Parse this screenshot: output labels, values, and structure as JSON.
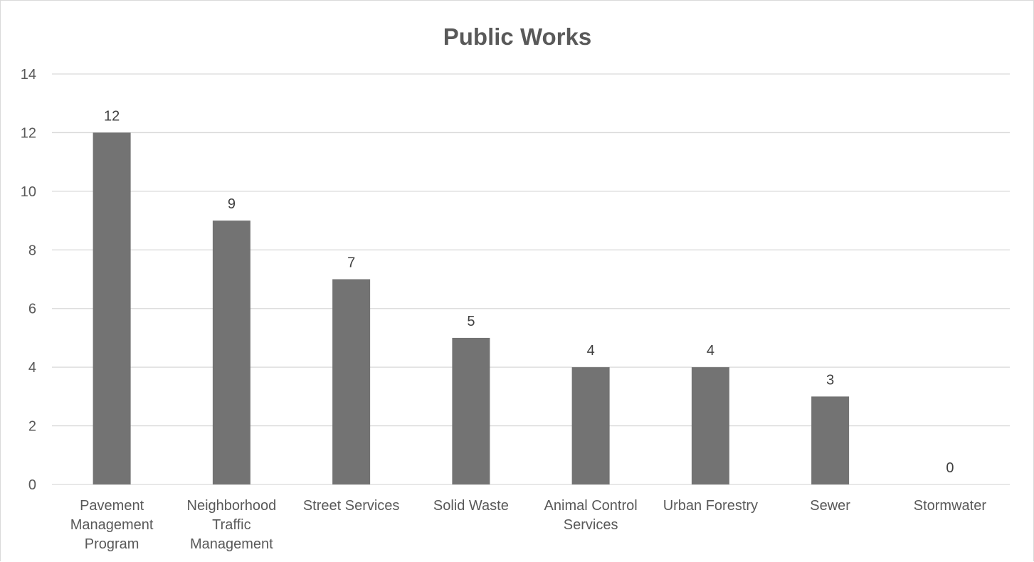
{
  "chart_data": {
    "type": "bar",
    "title": "Public Works",
    "xlabel": "",
    "ylabel": "",
    "categories": [
      "Pavement Management Program",
      "Neighborhood Traffic Management",
      "Street Services",
      "Solid Waste",
      "Animal Control Services",
      "Urban Forestry",
      "Sewer",
      "Stormwater"
    ],
    "category_lines": [
      [
        "Pavement",
        "Management",
        "Program"
      ],
      [
        "Neighborhood",
        "Traffic",
        "Management"
      ],
      [
        "Street Services"
      ],
      [
        "Solid Waste"
      ],
      [
        "Animal Control",
        "Services"
      ],
      [
        "Urban Forestry"
      ],
      [
        "Sewer"
      ],
      [
        "Stormwater"
      ]
    ],
    "values": [
      12,
      9,
      7,
      5,
      4,
      4,
      3,
      0
    ],
    "ylim": [
      0,
      14
    ],
    "yticks": [
      0,
      2,
      4,
      6,
      8,
      10,
      12,
      14
    ],
    "grid": true,
    "legend": "none",
    "colors": {
      "bar": "#737373",
      "grid": "#d9d9d9",
      "text": "#595959"
    }
  }
}
